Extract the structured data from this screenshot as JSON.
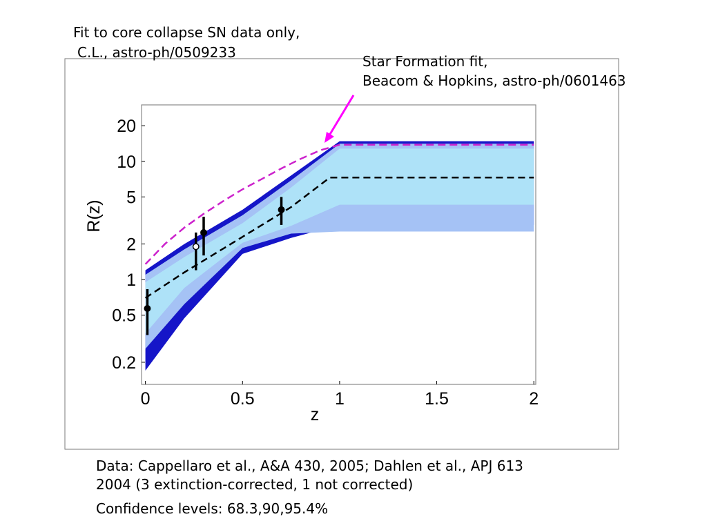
{
  "annotations": {
    "fit_label_1": "Fit to core collapse SN data only,",
    "fit_label_2": "C.L., astro-ph/0509233",
    "sf_label_1": "Star Formation fit,",
    "sf_label_2": "Beacom & Hopkins, astro-ph/0601463",
    "footer_1": "Data: Cappellaro et al., A&A 430, 2005; Dahlen et al., APJ 613",
    "footer_2": "2004 (3 extinction-corrected, 1 not corrected)",
    "footer_3": "Confidence levels: 68.3,90,95.4%"
  },
  "colors": {
    "band_95": "#1515c8",
    "band_90": "#a5c2f5",
    "band_68": "#aee2f8",
    "median": "#000000",
    "star_formation": "#cc22cc",
    "arrow": "#ff00ff"
  },
  "chart_data": {
    "type": "line",
    "xlabel": "z",
    "ylabel": "R(z)",
    "xlim": [
      -0.02,
      2.01
    ],
    "ylim": [
      0.13,
      30
    ],
    "yscale": "log",
    "xticks": [
      "0",
      "0.5",
      "1",
      "1.5",
      "2"
    ],
    "yticks": [
      "0.2",
      "0.5",
      "1",
      "2",
      "5",
      "10",
      "20"
    ],
    "x": [
      0,
      0.2,
      0.5,
      0.75,
      1,
      2
    ],
    "bands": {
      "95": {
        "upper": [
          1.2,
          2.0,
          3.9,
          7.6,
          14.8,
          14.8
        ],
        "lower": [
          0.17,
          0.47,
          1.65,
          2.25,
          2.9,
          2.9
        ]
      },
      "90": {
        "upper": [
          1.1,
          1.8,
          3.5,
          6.9,
          14.1,
          14.1
        ],
        "lower": [
          0.26,
          0.62,
          1.85,
          2.45,
          2.55,
          2.55
        ]
      },
      "68": {
        "upper": [
          0.95,
          1.55,
          3.0,
          6.0,
          12.8,
          12.8
        ],
        "lower": [
          0.35,
          0.85,
          2.05,
          2.85,
          4.3,
          4.3
        ]
      }
    },
    "series": [
      {
        "x": [
          0,
          0.2,
          0.5,
          0.75,
          0.95,
          2
        ],
        "y": [
          0.7,
          1.15,
          2.3,
          4.1,
          7.3,
          7.3
        ]
      },
      {
        "x": [
          0,
          0.1,
          0.2,
          0.3,
          0.4,
          0.5,
          0.6,
          0.7,
          0.8,
          0.9,
          1,
          2
        ],
        "y": [
          1.35,
          2.0,
          2.75,
          3.6,
          4.6,
          5.8,
          7.1,
          8.7,
          10.5,
          12.4,
          13.8,
          13.8
        ]
      }
    ],
    "points": [
      {
        "x": 0.01,
        "y": 0.57,
        "ylo": 0.34,
        "yhi": 0.83,
        "filled": true
      },
      {
        "x": 0.26,
        "y": 1.9,
        "ylo": 1.2,
        "yhi": 2.5,
        "filled": false
      },
      {
        "x": 0.3,
        "y": 2.5,
        "ylo": 1.6,
        "yhi": 3.4,
        "filled": true
      },
      {
        "x": 0.7,
        "y": 3.9,
        "ylo": 2.9,
        "yhi": 5.0,
        "filled": true
      }
    ]
  }
}
